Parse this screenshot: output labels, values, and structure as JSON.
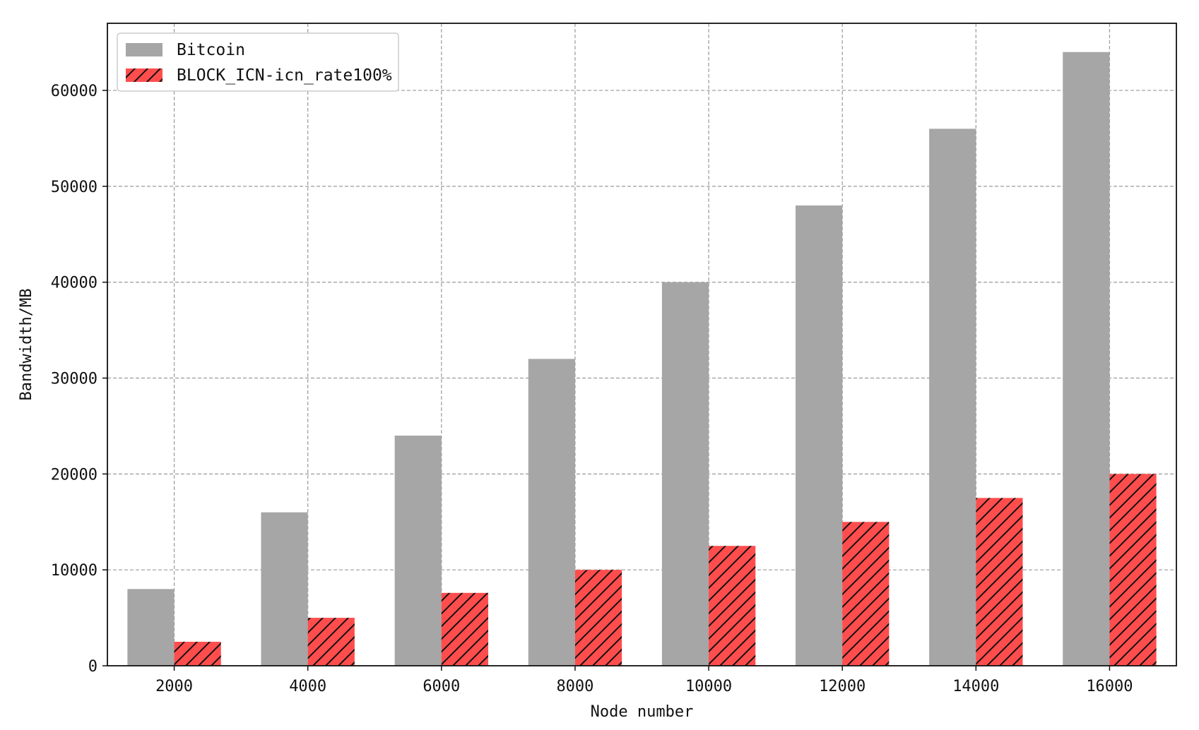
{
  "chart_data": {
    "type": "bar",
    "title": "",
    "xlabel": "Node number",
    "ylabel": "Bandwidth/MB",
    "categories": [
      "2000",
      "4000",
      "6000",
      "8000",
      "10000",
      "12000",
      "14000",
      "16000"
    ],
    "series": [
      {
        "name": "Bitcoin",
        "values": [
          8000,
          16000,
          24000,
          32000,
          40000,
          48000,
          56000,
          64000
        ],
        "color": "#a6a6a6",
        "hatch": "none"
      },
      {
        "name": "BLOCK_ICN-icn_rate100%",
        "values": [
          2500,
          5000,
          7600,
          10000,
          12500,
          15000,
          17500,
          20000
        ],
        "color": "#ff4d4d",
        "hatch": "diagonal"
      }
    ],
    "ylim": [
      0,
      67000
    ],
    "yticks": [
      0,
      10000,
      20000,
      30000,
      40000,
      50000,
      60000
    ],
    "grid": true,
    "grid_style": "dashed",
    "legend_position": "upper-left"
  }
}
